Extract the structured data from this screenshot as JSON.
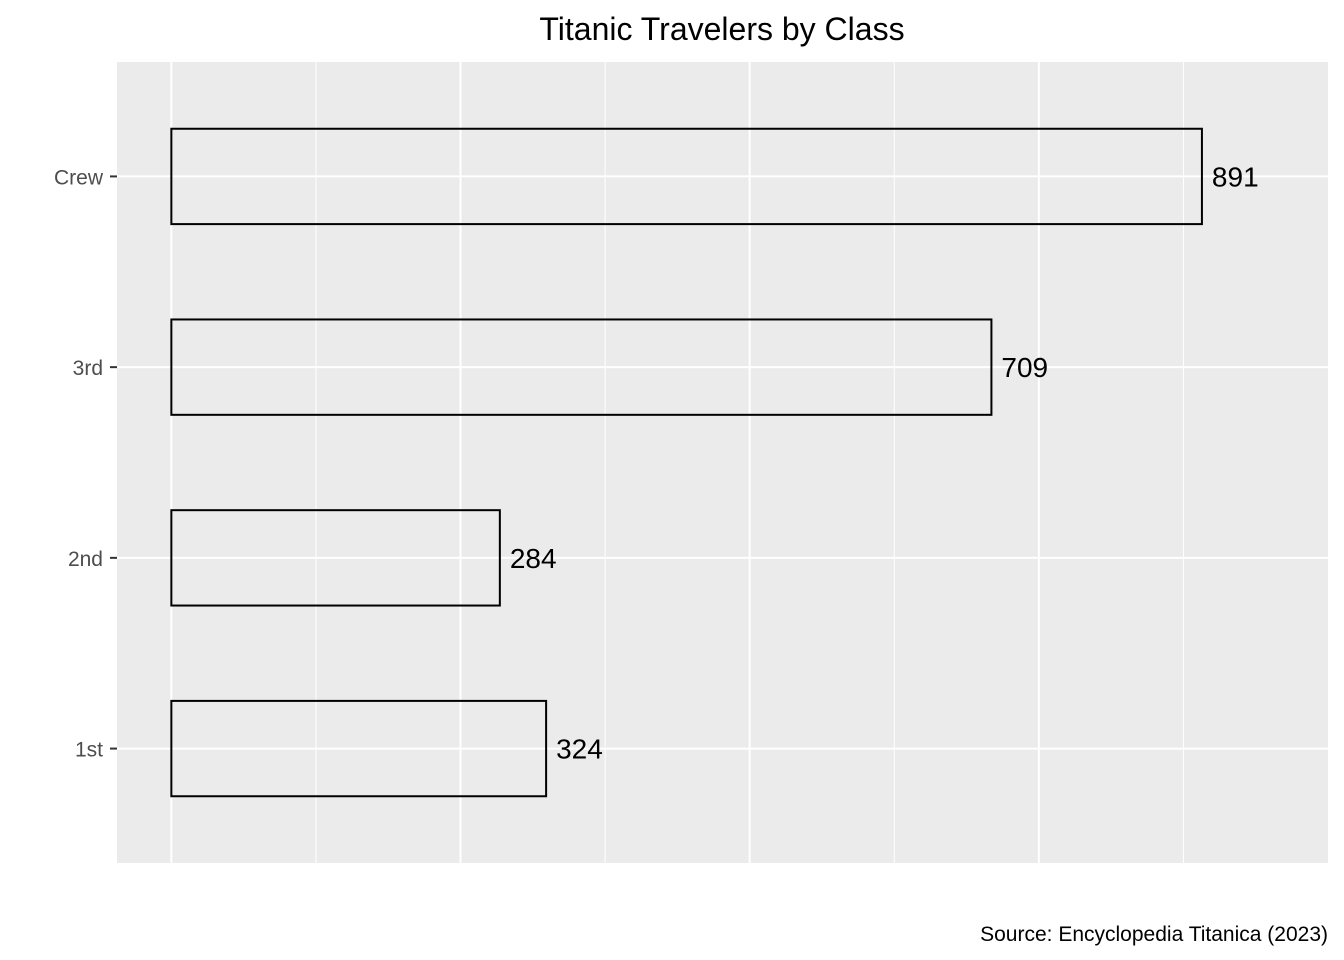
{
  "chart_data": {
    "type": "bar",
    "orientation": "horizontal",
    "title": "Titanic Travelers by Class",
    "caption": "Source: Encyclopedia Titanica (2023)",
    "xlabel": "",
    "ylabel": "",
    "categories": [
      "1st",
      "2nd",
      "3rd",
      "Crew"
    ],
    "values": [
      324,
      284,
      709,
      891
    ],
    "data_labels": [
      "324",
      "284",
      "709",
      "891"
    ],
    "xlim": [
      -47,
      1000
    ],
    "x_gridlines_major": [
      0,
      250,
      500,
      750
    ],
    "x_gridlines_minor": [
      125,
      375,
      625,
      875
    ],
    "x_tick_labels_visible": false,
    "grid": true,
    "legend": "none",
    "colors": {
      "panel_background": "#ebebeb",
      "gridline": "#ffffff",
      "bar_fill": "none",
      "bar_outline": "#000000",
      "tick_label": "#4d4d4d"
    }
  }
}
